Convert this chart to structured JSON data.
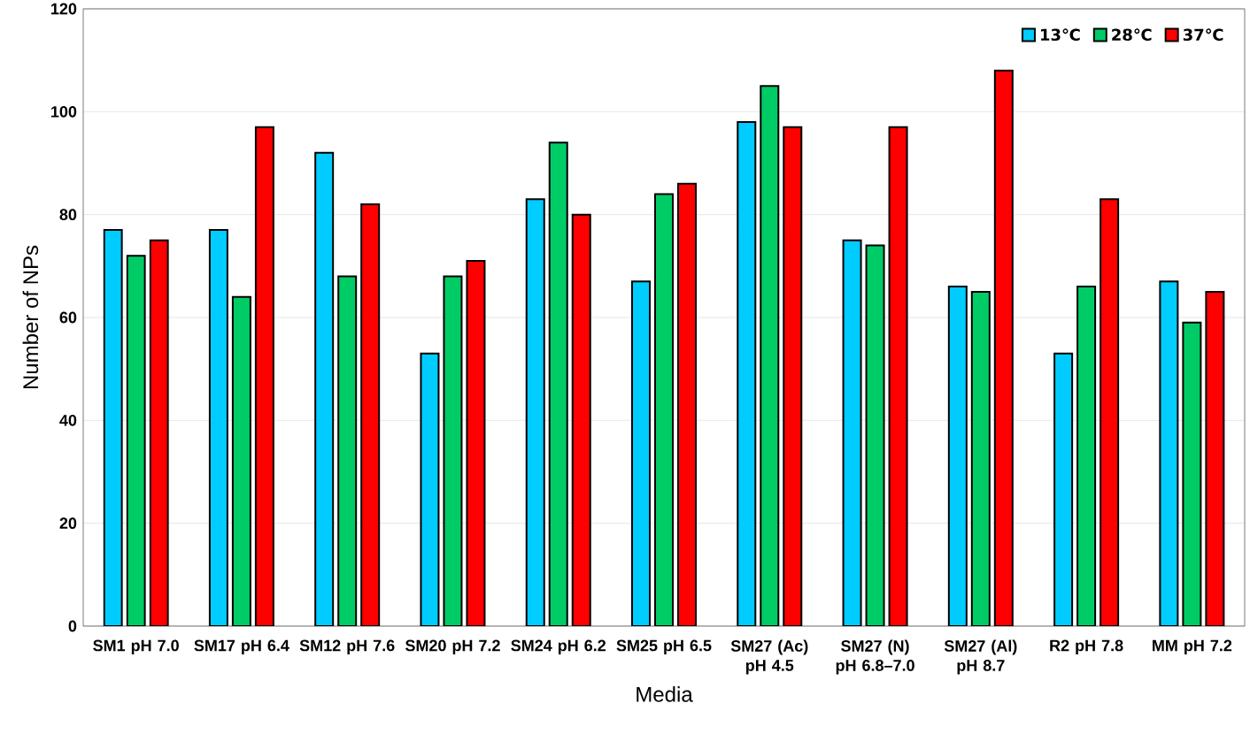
{
  "chart_data": {
    "type": "bar",
    "xlabel": "Media",
    "ylabel": "Number of NPs",
    "categories": [
      "SM1 pH 7.0",
      "SM17 pH 6.4",
      "SM12 pH 7.6",
      "SM20 pH 7.2",
      "SM24 pH 6.2",
      "SM25 pH 6.5",
      "SM27 (Ac) pH 4.5",
      "SM27 (N) pH 6.8–7.0",
      "SM27 (Al) pH 8.7",
      "R2 pH 7.8",
      "MM pH 7.2"
    ],
    "series": [
      {
        "name": "13℃",
        "color": "#00ccff",
        "values": [
          77,
          77,
          92,
          53,
          83,
          67,
          98,
          75,
          66,
          53,
          67
        ]
      },
      {
        "name": "28℃",
        "color": "#00cc66",
        "values": [
          72,
          64,
          68,
          68,
          94,
          84,
          105,
          74,
          65,
          66,
          59
        ]
      },
      {
        "name": "37℃",
        "color": "#ff0000",
        "values": [
          75,
          97,
          82,
          71,
          80,
          86,
          97,
          97,
          108,
          83,
          65
        ]
      }
    ],
    "ylim": [
      0,
      120
    ],
    "yticks": [
      0,
      20,
      40,
      60,
      80,
      100,
      120
    ],
    "grid": "y",
    "legend": "top right"
  }
}
